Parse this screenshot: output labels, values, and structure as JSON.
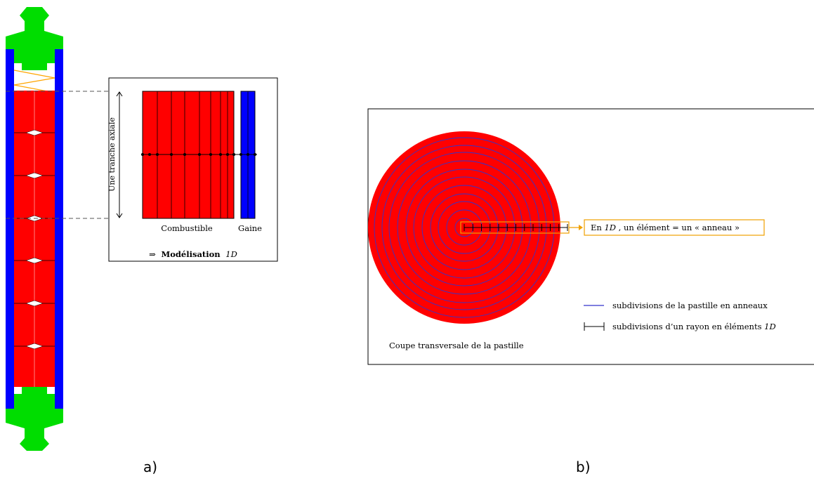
{
  "panel_a": {
    "inset": {
      "axial_slice_label": "Une tranche axiale",
      "fuel_label": "Combustible",
      "cladding_label": "Gaine",
      "model_arrow": "⇒",
      "model_bold": "Modélisation",
      "model_dim": "1D"
    },
    "caption": "a)"
  },
  "panel_b": {
    "callout_prefix": "En ",
    "callout_dim": "1D",
    "callout_suffix": ", un élément = un «  anneau »",
    "legend_rings": "subdivisions de la pastille en anneaux",
    "legend_elements_prefix": "subdivisions d’un rayon en éléments ",
    "legend_elements_dim": "1D",
    "section_label": "Coupe transversale de la pastille",
    "caption": "b)"
  },
  "colors": {
    "fuel": "#ff0000",
    "cladding": "#0000ff",
    "end_plug": "#00dd00",
    "spring": "#ffa500",
    "callout_border": "#f0a000",
    "ring_lines": "#3333cc"
  }
}
